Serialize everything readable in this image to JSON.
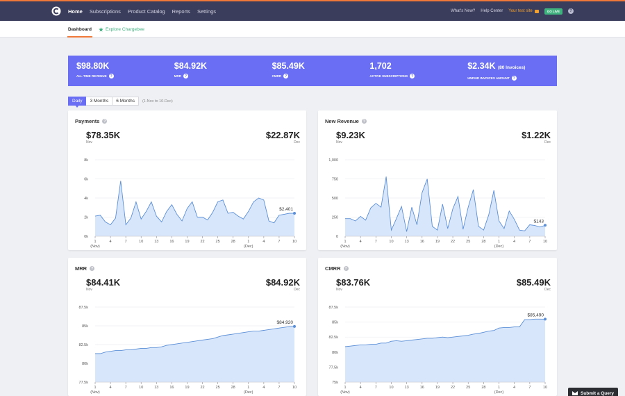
{
  "topbar": {
    "logo_icon": "chargebee-logo",
    "nav": [
      "Home",
      "Subscriptions",
      "Product Catalog",
      "Reports",
      "Settings"
    ],
    "whats_new": "What's New?",
    "help_center": "Help Center",
    "site": "Your test site",
    "go_live": "GO LIVE",
    "accent": "#f0793a"
  },
  "subnav": {
    "dashboard": "Dashboard",
    "explore": "Explore Chargebee"
  },
  "metrics": [
    {
      "value": "$98.80K",
      "note": "",
      "label": "ALL TIME REVENUE"
    },
    {
      "value": "$84.92K",
      "note": "",
      "label": "MRR"
    },
    {
      "value": "$85.49K",
      "note": "",
      "label": "CMRR"
    },
    {
      "value": "1,702",
      "note": "",
      "label": "ACTIVE SUBSCRIPTIONS"
    },
    {
      "value": "$2.34K",
      "note": "(80 Invoices)",
      "label": "UNPAID INVOICES AMOUNT"
    }
  ],
  "range": {
    "options": [
      "Daily",
      "3 Months",
      "6 Months"
    ],
    "selected": "Daily",
    "text": "(1-Nov to 10-Dec)"
  },
  "colors": {
    "brand": "#6a6ef5",
    "line": "#5b8fd6",
    "fill": "#d8e6fb",
    "green": "#3fb27f"
  },
  "cards": {
    "payments": {
      "title": "Payments",
      "left_value": "$78.35K",
      "left_sub": "Nov",
      "right_value": "$22.87K",
      "right_sub": "Dec"
    },
    "new_revenue": {
      "title": "New Revenue",
      "left_value": "$9.23K",
      "left_sub": "Nov",
      "right_value": "$1.22K",
      "right_sub": "Dec"
    },
    "mrr": {
      "title": "MRR",
      "left_value": "$84.41K",
      "left_sub": "Nov",
      "right_value": "$84.92K",
      "right_sub": "Dec"
    },
    "cmrr": {
      "title": "CMRR",
      "left_value": "$83.76K",
      "left_sub": "Nov",
      "right_value": "$85.49K",
      "right_sub": "Dec"
    }
  },
  "submit_query": "Submit a Query",
  "chart_data": [
    {
      "id": "payments",
      "type": "area",
      "x_ticks": [
        "1",
        "4",
        "7",
        "10",
        "13",
        "16",
        "19",
        "22",
        "25",
        "28",
        "1",
        "4",
        "7",
        "10"
      ],
      "x_subticks": {
        "0": "(Nov)",
        "10": "(Dec)"
      },
      "y_ticks": [
        "0k",
        "2k",
        "4k",
        "6k",
        "8k"
      ],
      "ylim": [
        0,
        8000
      ],
      "values": [
        2100,
        2200,
        1500,
        1200,
        1900,
        5800,
        1200,
        1900,
        3600,
        1800,
        2600,
        3600,
        2100,
        1500,
        2600,
        3300,
        2300,
        1600,
        2900,
        3600,
        2000,
        2000,
        1700,
        2500,
        3600,
        3800,
        2400,
        2500,
        2100,
        1800,
        2600,
        3600,
        4000,
        3800,
        1600,
        1400,
        2200,
        2300,
        2400,
        2401
      ],
      "end_label": "$2,401"
    },
    {
      "id": "new_revenue",
      "type": "area",
      "x_ticks": [
        "1",
        "4",
        "7",
        "10",
        "13",
        "16",
        "19",
        "22",
        "25",
        "28",
        "1",
        "4",
        "7",
        "10"
      ],
      "x_subticks": {
        "0": "(Nov)",
        "10": "(Dec)"
      },
      "y_ticks": [
        "0",
        "250",
        "500",
        "750",
        "1,000"
      ],
      "ylim": [
        0,
        1000
      ],
      "values": [
        230,
        230,
        200,
        260,
        210,
        370,
        430,
        380,
        780,
        80,
        230,
        390,
        60,
        380,
        150,
        570,
        750,
        130,
        80,
        420,
        100,
        360,
        520,
        90,
        380,
        610,
        130,
        80,
        280,
        600,
        200,
        100,
        330,
        220,
        80,
        70,
        150,
        140,
        120,
        143
      ],
      "end_label": "$143"
    },
    {
      "id": "mrr",
      "type": "area",
      "x_ticks": [
        "1",
        "4",
        "7",
        "10",
        "13",
        "16",
        "19",
        "22",
        "25",
        "28",
        "1",
        "4",
        "7",
        "10"
      ],
      "x_subticks": {
        "0": "(Nov)",
        "10": "(Dec)"
      },
      "y_ticks": [
        "77.5k",
        "80k",
        "82.5k",
        "85k",
        "87.5k"
      ],
      "ylim": [
        77500,
        87500
      ],
      "values": [
        81300,
        81300,
        81500,
        81600,
        81700,
        81700,
        81800,
        81800,
        81900,
        82000,
        82000,
        82100,
        82100,
        82200,
        82400,
        82500,
        82600,
        82700,
        82800,
        82900,
        83000,
        83100,
        83200,
        83300,
        83500,
        83700,
        83800,
        83900,
        84000,
        84100,
        84200,
        84300,
        84300,
        84400,
        84500,
        84600,
        84700,
        84800,
        84900,
        84920
      ],
      "end_label": "$84,920"
    },
    {
      "id": "cmrr",
      "type": "area",
      "x_ticks": [
        "1",
        "4",
        "7",
        "10",
        "13",
        "16",
        "19",
        "22",
        "25",
        "28",
        "1",
        "4",
        "7",
        "10"
      ],
      "x_subticks": {
        "0": "(Nov)",
        "10": "(Dec)"
      },
      "y_ticks": [
        "75k",
        "77.5k",
        "80k",
        "82.5k",
        "85k",
        "87.5k"
      ],
      "ylim": [
        75000,
        87500
      ],
      "values": [
        80900,
        81000,
        81100,
        81200,
        81200,
        81300,
        81300,
        81500,
        81500,
        81800,
        81900,
        81800,
        81900,
        82000,
        82100,
        82200,
        82300,
        82300,
        82400,
        82500,
        82400,
        82500,
        82600,
        82700,
        82800,
        83000,
        83100,
        83300,
        83500,
        83600,
        84000,
        84100,
        84100,
        84200,
        84200,
        85400,
        85400,
        85500,
        85500,
        85490
      ],
      "end_label": "$85,490"
    }
  ]
}
